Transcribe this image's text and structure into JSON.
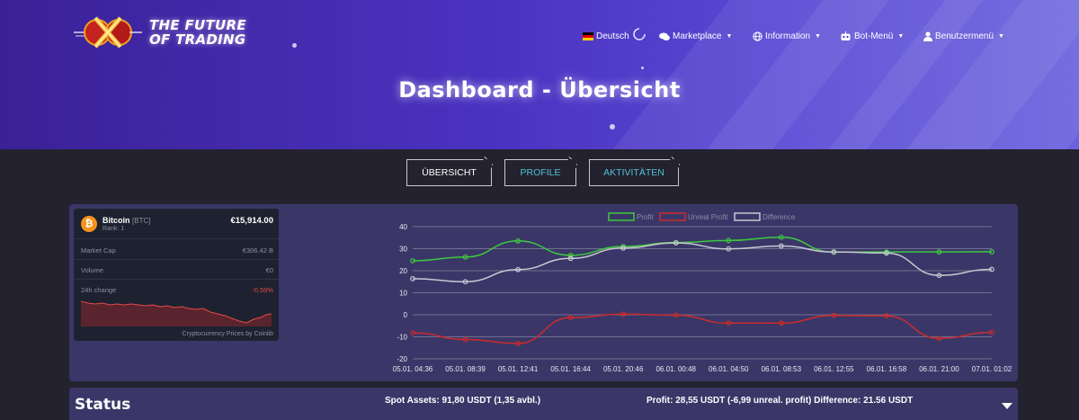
{
  "header": {
    "logo_line1": "THE FUTURE",
    "logo_line2": "OF TRADING",
    "nav": {
      "language": "Deutsch",
      "marketplace": "Marketplace",
      "information": "Information",
      "bot_menu": "Bot-Menü",
      "user_menu": "Benutzermenü"
    },
    "page_title": "Dashboard - Übersicht"
  },
  "tabs": [
    {
      "label": "ÜBERSICHT",
      "active": true
    },
    {
      "label": "PROFILE",
      "active": false
    },
    {
      "label": "AKTIVITÄTEN",
      "active": false
    }
  ],
  "widget": {
    "coin_name": "Bitcoin",
    "coin_symbol": "[BTC]",
    "rank": "Rank: 1",
    "price": "€15,914.00",
    "market_cap_label": "Market Cap",
    "market_cap_value": "€306.42 B",
    "volume_label": "Volume",
    "volume_value": "€0",
    "change_label": "24h change",
    "change_value": "-0.59%",
    "footer": "Cryptocurrency Prices by Coinlib",
    "icon": "bitcoin-icon"
  },
  "chart_data": {
    "type": "line",
    "x": [
      "05.01. 04:36",
      "05.01. 08:39",
      "05.01. 12:41",
      "05.01. 16:44",
      "05.01. 20:46",
      "06.01. 00:48",
      "06.01. 04:50",
      "06.01. 08:53",
      "06.01. 12:55",
      "06.01. 16:58",
      "06.01. 21:00",
      "07.01. 01:02"
    ],
    "series": [
      {
        "name": "Profit",
        "color": "#3ec83e",
        "values": [
          24.5,
          26.2,
          33.5,
          27,
          31,
          32.8,
          33.7,
          35.2,
          28.4,
          28.5,
          28.5,
          28.6
        ]
      },
      {
        "name": "Unreal Profit",
        "color": "#cc2b2b",
        "values": [
          -8.2,
          -11.2,
          -13,
          -1.3,
          0.3,
          -0.2,
          -3.8,
          -3.8,
          -0.3,
          -0.5,
          -10.7,
          -8
        ]
      },
      {
        "name": "Difference",
        "color": "#c8c8d2",
        "values": [
          16.4,
          15,
          20.5,
          25.6,
          30.3,
          32.6,
          29.9,
          31.2,
          28.5,
          28,
          17.9,
          20.6
        ]
      }
    ],
    "ylim": [
      -20,
      40
    ],
    "yticks": [
      -20,
      -10,
      0,
      10,
      20,
      30,
      40
    ],
    "grid": true,
    "legend_position": "top-center"
  },
  "status": {
    "title": "Status",
    "spot_assets": "Spot Assets: 91,80 USDT (1,35 avbl.)",
    "profit_summary": "Profit: 28,55 USDT (-6,99 unreal. profit) Difference: 21.56 USDT"
  }
}
